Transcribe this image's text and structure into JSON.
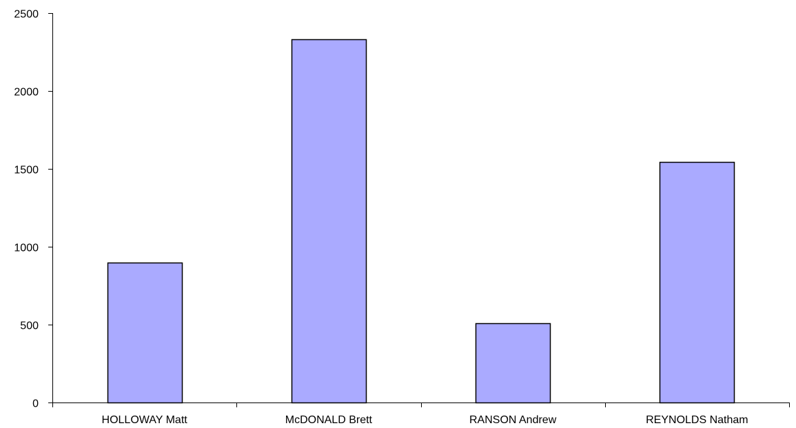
{
  "chart_data": {
    "type": "bar",
    "title": "",
    "xlabel": "",
    "ylabel": "",
    "categories": [
      "HOLLOWAY Matt",
      "McDONALD Brett",
      "RANSON Andrew",
      "REYNOLDS Natham"
    ],
    "values": [
      900,
      2330,
      510,
      1545
    ],
    "ylim": [
      0,
      2500
    ],
    "yticks": [
      0,
      500,
      1000,
      1500,
      2000,
      2500
    ],
    "grid": false,
    "legend": "none",
    "bar_color": "#AAAAFF",
    "bar_edge_color": "#000000"
  }
}
